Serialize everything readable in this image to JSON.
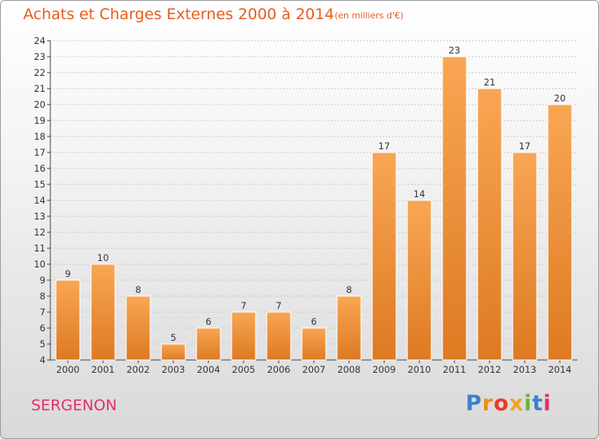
{
  "header": {
    "title": "Achats et Charges Externes 2000 à 2014",
    "subtitle": "(en milliers d'€)"
  },
  "footer": {
    "commune": "SERGENON",
    "logo_text": "Proxiti"
  },
  "colors": {
    "title": "#ea5b1b",
    "commune": "#e0306a",
    "bar_light": "#f9a654",
    "bar_dark": "#dd7a22",
    "logo_letters": [
      "#3b7fd0",
      "#f08a1c",
      "#e8392b",
      "#f0a51c",
      "#6db33f",
      "#3b7fd0",
      "#e0306a"
    ]
  },
  "chart_data": {
    "type": "bar",
    "title": "Achats et Charges Externes 2000 à 2014",
    "subtitle": "(en milliers d'€)",
    "xlabel": "",
    "ylabel": "",
    "categories": [
      "2000",
      "2001",
      "2002",
      "2003",
      "2004",
      "2005",
      "2006",
      "2007",
      "2008",
      "2009",
      "2010",
      "2011",
      "2012",
      "2013",
      "2014"
    ],
    "values": [
      9,
      10,
      8,
      5,
      6,
      7,
      7,
      6,
      8,
      17,
      14,
      23,
      21,
      17,
      20
    ],
    "ylim": [
      4,
      24
    ],
    "yticks": [
      4,
      5,
      6,
      7,
      8,
      9,
      10,
      11,
      12,
      13,
      14,
      15,
      16,
      17,
      18,
      19,
      20,
      21,
      22,
      23,
      24
    ],
    "grid": true,
    "legend": "none"
  }
}
